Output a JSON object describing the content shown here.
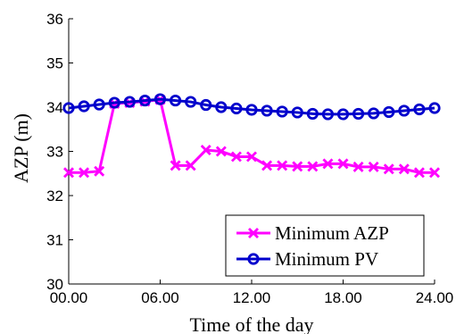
{
  "chart_data": {
    "type": "line",
    "xlabel": "Time of the day",
    "ylabel": "AZP (m)",
    "xlim": [
      0,
      24
    ],
    "ylim": [
      30,
      36
    ],
    "x_ticks": [
      "00.00",
      "06.00",
      "12.00",
      "18.00",
      "24.00"
    ],
    "x_tick_values": [
      0,
      6,
      12,
      18,
      24
    ],
    "y_ticks": [
      "30",
      "31",
      "32",
      "33",
      "34",
      "35",
      "36"
    ],
    "y_tick_values": [
      30,
      31,
      32,
      33,
      34,
      35,
      36
    ],
    "grid": false,
    "legend_position": "bottom-right",
    "x": [
      0,
      1,
      2,
      3,
      4,
      5,
      6,
      7,
      8,
      9,
      10,
      11,
      12,
      13,
      14,
      15,
      16,
      17,
      18,
      19,
      20,
      21,
      22,
      23,
      24
    ],
    "series": [
      {
        "name": "Minimum AZP",
        "color": "#ff00ff",
        "marker": "x",
        "values": [
          32.52,
          32.52,
          32.55,
          34.08,
          34.1,
          34.13,
          34.17,
          32.68,
          32.68,
          33.03,
          33.0,
          32.88,
          32.88,
          32.68,
          32.68,
          32.66,
          32.66,
          32.72,
          32.72,
          32.65,
          32.65,
          32.6,
          32.6,
          32.52,
          32.52
        ]
      },
      {
        "name": "Minimum PV",
        "color": "#0000cc",
        "marker": "o",
        "values": [
          33.98,
          34.02,
          34.06,
          34.1,
          34.12,
          34.15,
          34.18,
          34.15,
          34.12,
          34.05,
          34.0,
          33.97,
          33.94,
          33.92,
          33.9,
          33.88,
          33.85,
          33.84,
          33.84,
          33.85,
          33.86,
          33.89,
          33.92,
          33.95,
          33.98
        ]
      }
    ]
  }
}
